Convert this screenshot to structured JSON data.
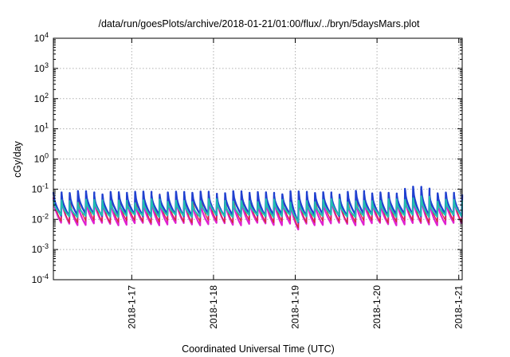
{
  "chart_data": {
    "type": "line",
    "title": "/data/run/goesPlots/archive/2018-01-21/01:00/flux/../bryn/5daysMars.plot",
    "xlabel": "Coordinated Universal Time (UTC)",
    "ylabel": "cGy/day",
    "yscale": "log",
    "ylim": [
      0.0001,
      10000
    ],
    "yticks": [
      {
        "value": 0.0001,
        "base": "10",
        "exp": "-4"
      },
      {
        "value": 0.001,
        "base": "10",
        "exp": "-3"
      },
      {
        "value": 0.01,
        "base": "10",
        "exp": "-2"
      },
      {
        "value": 0.1,
        "base": "10",
        "exp": "-1"
      },
      {
        "value": 1,
        "base": "10",
        "exp": "0"
      },
      {
        "value": 10,
        "base": "10",
        "exp": "1"
      },
      {
        "value": 100,
        "base": "10",
        "exp": "2"
      },
      {
        "value": 1000,
        "base": "10",
        "exp": "3"
      },
      {
        "value": 10000,
        "base": "10",
        "exp": "4"
      }
    ],
    "xlim": [
      "2018-01-16T01:00",
      "2018-01-21T01:00"
    ],
    "xticks": [
      {
        "value": "2018-01-17T00:00",
        "label": "2018-1-17"
      },
      {
        "value": "2018-01-18T00:00",
        "label": "2018-1-18"
      },
      {
        "value": "2018-01-19T00:00",
        "label": "2018-1-19"
      },
      {
        "value": "2018-01-20T00:00",
        "label": "2018-1-20"
      },
      {
        "value": "2018-01-21T00:00",
        "label": "2018-1-21"
      }
    ],
    "grid": true,
    "legend": "none",
    "pattern": {
      "period_hours": 2.4,
      "start": "2018-01-16T01:00",
      "end": "2018-01-21T01:00"
    },
    "series": [
      {
        "color": "#e020d0",
        "stroke_width": 2.2,
        "peak": 0.05,
        "trough": 0.007
      },
      {
        "color": "#d03030",
        "stroke_width": 1.2,
        "peak": 0.065,
        "trough": 0.0085
      },
      {
        "color": "#2040d0",
        "stroke_width": 2.4,
        "peak": 0.075,
        "trough": 0.014
      },
      {
        "color": "#20c0b0",
        "stroke_width": 2.0,
        "peak": 0.04,
        "trough": 0.013
      }
    ]
  }
}
